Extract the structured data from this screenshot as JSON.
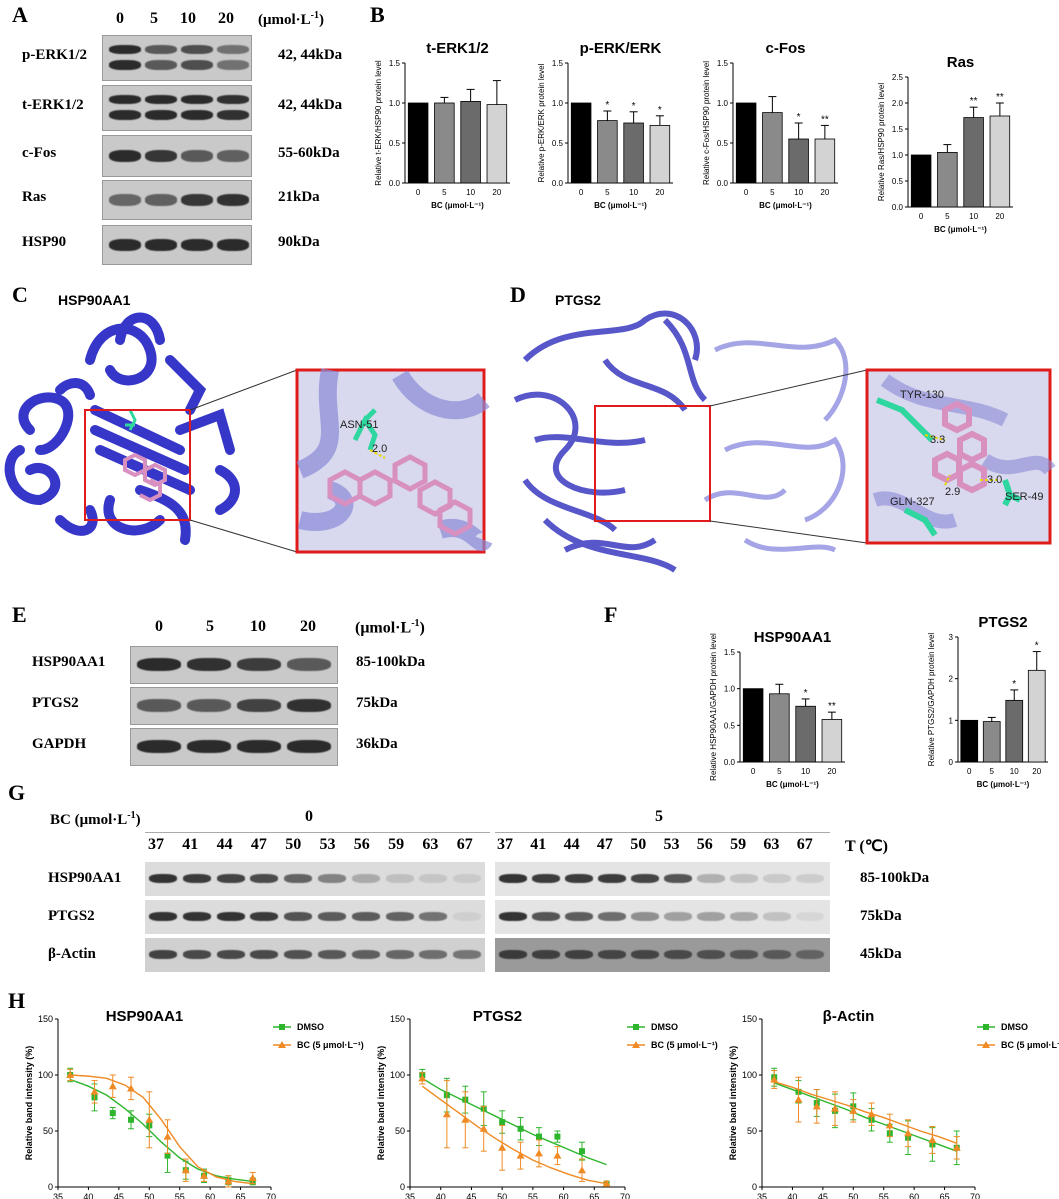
{
  "panels": {
    "A": "A",
    "B": "B",
    "C": "C",
    "D": "D",
    "E": "E",
    "F": "F",
    "G": "G",
    "H": "H"
  },
  "panelA": {
    "conc": [
      "0",
      "5",
      "10",
      "20"
    ],
    "unit_html": "(μmol·L",
    "unit_sup": "-1",
    "unit_close": ")",
    "rows": [
      {
        "label": "p-ERK1/2",
        "kda": "42, 44kDa",
        "intensity": [
          1,
          0.6,
          0.7,
          0.4
        ],
        "double": true
      },
      {
        "label": "t-ERK1/2",
        "kda": "42, 44kDa",
        "intensity": [
          1,
          1,
          1,
          0.95
        ],
        "double": true
      },
      {
        "label": "c-Fos",
        "kda": "55-60kDa",
        "intensity": [
          1,
          0.9,
          0.6,
          0.55
        ],
        "double": false
      },
      {
        "label": "Ras",
        "kda": "21kDa",
        "intensity": [
          0.5,
          0.55,
          0.9,
          0.95
        ],
        "double": false
      },
      {
        "label": "HSP90",
        "kda": "90kDa",
        "intensity": [
          1,
          1,
          1,
          1
        ],
        "double": false
      }
    ]
  },
  "chart_data": [
    {
      "type": "bar",
      "title": "t-ERK1/2",
      "ylabel": "Relative t-ERK/HSP90 protein level",
      "xlabel": "BC (μmol·L⁻¹)",
      "categories": [
        "0",
        "5",
        "10",
        "20"
      ],
      "values": [
        1.0,
        1.0,
        1.02,
        0.98
      ],
      "errors": [
        0,
        0.07,
        0.15,
        0.3
      ],
      "sig": [
        "",
        "",
        "",
        ""
      ],
      "ylim": [
        0,
        1.5
      ],
      "yticks": [
        "0.0",
        "0.5",
        "1.0",
        "1.5"
      ],
      "colors": [
        "#000000",
        "#8a8a8a",
        "#6b6b6b",
        "#d3d3d3"
      ]
    },
    {
      "type": "bar",
      "title": "p-ERK/ERK",
      "ylabel": "Relative p-ERK/ERK protein level",
      "xlabel": "BC (μmol·L⁻¹)",
      "categories": [
        "0",
        "5",
        "10",
        "20"
      ],
      "values": [
        1.0,
        0.78,
        0.75,
        0.72
      ],
      "errors": [
        0,
        0.12,
        0.14,
        0.12
      ],
      "sig": [
        "",
        "*",
        "*",
        "*"
      ],
      "ylim": [
        0,
        1.5
      ],
      "yticks": [
        "0.0",
        "0.5",
        "1.0",
        "1.5"
      ],
      "colors": [
        "#000000",
        "#8a8a8a",
        "#6b6b6b",
        "#d3d3d3"
      ]
    },
    {
      "type": "bar",
      "title": "c-Fos",
      "ylabel": "Relative c-Fos/HSP90 protein level",
      "xlabel": "BC (μmol·L⁻¹)",
      "categories": [
        "0",
        "5",
        "10",
        "20"
      ],
      "values": [
        1.0,
        0.88,
        0.55,
        0.55
      ],
      "errors": [
        0,
        0.2,
        0.2,
        0.17
      ],
      "sig": [
        "",
        "",
        "*",
        "**"
      ],
      "ylim": [
        0,
        1.5
      ],
      "yticks": [
        "0.0",
        "0.5",
        "1.0",
        "1.5"
      ],
      "colors": [
        "#000000",
        "#8a8a8a",
        "#6b6b6b",
        "#d3d3d3"
      ]
    },
    {
      "type": "bar",
      "title": "Ras",
      "ylabel": "Relative Ras/HSP90 protein level",
      "xlabel": "BC (μmol·L⁻¹)",
      "categories": [
        "0",
        "5",
        "10",
        "20"
      ],
      "values": [
        1.0,
        1.05,
        1.72,
        1.75
      ],
      "errors": [
        0,
        0.15,
        0.2,
        0.25
      ],
      "sig": [
        "",
        "",
        "**",
        "**"
      ],
      "ylim": [
        0,
        2.5
      ],
      "yticks": [
        "0.0",
        "0.5",
        "1.0",
        "1.5",
        "2.0",
        "2.5"
      ],
      "colors": [
        "#000000",
        "#8a8a8a",
        "#6b6b6b",
        "#d3d3d3"
      ]
    },
    {
      "type": "bar",
      "title": "HSP90AA1",
      "ylabel": "Relative HSP90AA1/GAPDH protein level",
      "xlabel": "BC (μmol·L⁻¹)",
      "categories": [
        "0",
        "5",
        "10",
        "20"
      ],
      "values": [
        1.0,
        0.93,
        0.76,
        0.58
      ],
      "errors": [
        0,
        0.13,
        0.1,
        0.1
      ],
      "sig": [
        "",
        "",
        "*",
        "**"
      ],
      "ylim": [
        0,
        1.5
      ],
      "yticks": [
        "0.0",
        "0.5",
        "1.0",
        "1.5"
      ],
      "colors": [
        "#000000",
        "#8a8a8a",
        "#6b6b6b",
        "#d3d3d3"
      ]
    },
    {
      "type": "bar",
      "title": "PTGS2",
      "ylabel": "Relative PTGS2/GAPDH protein level",
      "xlabel": "BC (μmol·L⁻¹)",
      "categories": [
        "0",
        "5",
        "10",
        "20"
      ],
      "values": [
        1.0,
        0.97,
        1.48,
        2.2
      ],
      "errors": [
        0,
        0.1,
        0.25,
        0.45
      ],
      "sig": [
        "",
        "",
        "*",
        "*"
      ],
      "ylim": [
        0,
        3
      ],
      "yticks": [
        "0",
        "1",
        "2",
        "3"
      ],
      "colors": [
        "#000000",
        "#8a8a8a",
        "#6b6b6b",
        "#d3d3d3"
      ]
    },
    {
      "type": "line",
      "title": "HSP90AA1",
      "ylabel": "Relative band intensity (%)",
      "xlabel": "T (℃)",
      "xlim": [
        35,
        70
      ],
      "ylim": [
        0,
        150
      ],
      "xticks": [
        "35",
        "40",
        "45",
        "50",
        "55",
        "60",
        "65",
        "70"
      ],
      "yticks": [
        "0",
        "50",
        "100",
        "150"
      ],
      "series": [
        {
          "name": "DMSO",
          "color": "#2db52d",
          "marker": "square",
          "x": [
            37,
            41,
            44,
            47,
            50,
            53,
            56,
            59,
            63,
            67
          ],
          "y": [
            100,
            80,
            66,
            60,
            55,
            28,
            15,
            10,
            6,
            5
          ],
          "err": [
            6,
            12,
            5,
            8,
            10,
            15,
            8,
            6,
            4,
            3
          ],
          "fit": [
            [
              37,
              96
            ],
            [
              40,
              90
            ],
            [
              43,
              82
            ],
            [
              46,
              70
            ],
            [
              49,
              56
            ],
            [
              52,
              40
            ],
            [
              55,
              26
            ],
            [
              58,
              16
            ],
            [
              61,
              10
            ],
            [
              64,
              7
            ],
            [
              67,
              5
            ]
          ]
        },
        {
          "name": "BC (5 μmol·L⁻¹)",
          "color": "#f08a24",
          "marker": "triangle",
          "x": [
            37,
            41,
            44,
            47,
            50,
            53,
            56,
            59,
            63,
            67
          ],
          "y": [
            100,
            85,
            90,
            88,
            60,
            45,
            15,
            10,
            5,
            8
          ],
          "err": [
            5,
            10,
            10,
            10,
            25,
            15,
            10,
            5,
            5,
            5
          ],
          "fit": [
            [
              37,
              100
            ],
            [
              40,
              99
            ],
            [
              43,
              97
            ],
            [
              46,
              91
            ],
            [
              49,
              80
            ],
            [
              52,
              60
            ],
            [
              55,
              36
            ],
            [
              58,
              18
            ],
            [
              61,
              9
            ],
            [
              64,
              5
            ],
            [
              67,
              3
            ]
          ]
        }
      ]
    },
    {
      "type": "line",
      "title": "PTGS2",
      "ylabel": "Relative band intensity (%)",
      "xlabel": "T (℃)",
      "xlim": [
        35,
        70
      ],
      "ylim": [
        0,
        150
      ],
      "xticks": [
        "35",
        "40",
        "45",
        "50",
        "55",
        "60",
        "65",
        "70"
      ],
      "yticks": [
        "0",
        "50",
        "100",
        "150"
      ],
      "series": [
        {
          "name": "DMSO",
          "color": "#2db52d",
          "marker": "square",
          "x": [
            37,
            41,
            44,
            47,
            50,
            53,
            56,
            59,
            63,
            67
          ],
          "y": [
            100,
            82,
            78,
            70,
            58,
            52,
            45,
            45,
            32,
            3
          ],
          "err": [
            5,
            15,
            12,
            15,
            10,
            10,
            8,
            5,
            8,
            2
          ],
          "fit": [
            [
              37,
              97
            ],
            [
              40,
              87
            ],
            [
              43,
              79
            ],
            [
              46,
              71
            ],
            [
              49,
              63
            ],
            [
              52,
              55
            ],
            [
              55,
              47
            ],
            [
              58,
              40
            ],
            [
              61,
              33
            ],
            [
              64,
              26
            ],
            [
              67,
              20
            ]
          ]
        },
        {
          "name": "BC (5 μmol·L⁻¹)",
          "color": "#f08a24",
          "marker": "triangle",
          "x": [
            37,
            41,
            44,
            47,
            50,
            53,
            56,
            59,
            63,
            67
          ],
          "y": [
            97,
            65,
            60,
            52,
            35,
            28,
            30,
            28,
            15,
            3
          ],
          "err": [
            5,
            30,
            25,
            20,
            20,
            12,
            12,
            8,
            10,
            2
          ],
          "fit": [
            [
              37,
              90
            ],
            [
              40,
              78
            ],
            [
              43,
              66
            ],
            [
              46,
              54
            ],
            [
              49,
              43
            ],
            [
              52,
              33
            ],
            [
              55,
              24
            ],
            [
              58,
              17
            ],
            [
              61,
              11
            ],
            [
              64,
              6
            ],
            [
              67,
              3
            ]
          ]
        }
      ]
    },
    {
      "type": "line",
      "title": "β-Actin",
      "ylabel": "Relative band intensity (%)",
      "xlabel": "T (℃)",
      "xlim": [
        35,
        70
      ],
      "ylim": [
        0,
        150
      ],
      "xticks": [
        "35",
        "40",
        "45",
        "50",
        "55",
        "60",
        "65",
        "70"
      ],
      "yticks": [
        "0",
        "50",
        "100",
        "150"
      ],
      "series": [
        {
          "name": "DMSO",
          "color": "#2db52d",
          "marker": "square",
          "x": [
            37,
            41,
            44,
            47,
            50,
            53,
            56,
            59,
            63,
            67
          ],
          "y": [
            98,
            85,
            75,
            68,
            72,
            60,
            48,
            44,
            38,
            35
          ],
          "err": [
            8,
            10,
            12,
            15,
            12,
            10,
            8,
            15,
            15,
            15
          ],
          "fit": [
            [
              37,
              93
            ],
            [
              40,
              87
            ],
            [
              43,
              81
            ],
            [
              46,
              75
            ],
            [
              49,
              69
            ],
            [
              52,
              62
            ],
            [
              55,
              56
            ],
            [
              58,
              50
            ],
            [
              61,
              44
            ],
            [
              64,
              38
            ],
            [
              67,
              32
            ]
          ]
        },
        {
          "name": "BC (5 μmol·L⁻¹)",
          "color": "#f08a24",
          "marker": "triangle",
          "x": [
            37,
            41,
            44,
            47,
            50,
            53,
            56,
            59,
            63,
            67
          ],
          "y": [
            96,
            78,
            72,
            70,
            68,
            65,
            55,
            48,
            42,
            35
          ],
          "err": [
            8,
            20,
            15,
            15,
            10,
            10,
            10,
            12,
            12,
            10
          ],
          "fit": [
            [
              37,
              94
            ],
            [
              40,
              89
            ],
            [
              43,
              83
            ],
            [
              46,
              78
            ],
            [
              49,
              73
            ],
            [
              52,
              67
            ],
            [
              55,
              62
            ],
            [
              58,
              56
            ],
            [
              61,
              50
            ],
            [
              64,
              45
            ],
            [
              67,
              39
            ]
          ]
        }
      ]
    }
  ],
  "panelC": {
    "title": "HSP90AA1",
    "residue": "ASN-51",
    "distance": "2.0"
  },
  "panelD": {
    "title": "PTGS2",
    "residues": [
      "TYR-130",
      "GLN-327",
      "SER-49"
    ],
    "distances": [
      "3.3",
      "2.9",
      "3.0"
    ]
  },
  "panelE": {
    "conc": [
      "0",
      "5",
      "10",
      "20"
    ],
    "unit_html": "(μmol·L",
    "unit_sup": "-1",
    "unit_close": ")",
    "rows": [
      {
        "label": "HSP90AA1",
        "kda": "85-100kDa",
        "intensity": [
          1,
          0.95,
          0.85,
          0.6
        ]
      },
      {
        "label": "PTGS2",
        "kda": "75kDa",
        "intensity": [
          0.6,
          0.6,
          0.8,
          0.95
        ]
      },
      {
        "label": "GAPDH",
        "kda": "36kDa",
        "intensity": [
          1,
          1,
          1,
          1
        ]
      }
    ]
  },
  "panelG": {
    "bc_label": "BC (μmol·L",
    "bc_sup": "-1",
    "bc_close": ")",
    "group0": "0",
    "group5": "5",
    "temps": [
      "37",
      "41",
      "44",
      "47",
      "50",
      "53",
      "56",
      "59",
      "63",
      "67"
    ],
    "t_label": "T (℃)",
    "rows": [
      {
        "label": "HSP90AA1",
        "kda": "85-100kDa",
        "left": [
          1,
          0.95,
          0.9,
          0.85,
          0.7,
          0.5,
          0.25,
          0.12,
          0.08,
          0.05
        ],
        "right": [
          1,
          0.95,
          0.95,
          0.95,
          0.9,
          0.8,
          0.25,
          0.15,
          0.1,
          0.08
        ]
      },
      {
        "label": "PTGS2",
        "kda": "75kDa",
        "left": [
          1,
          1,
          1,
          0.95,
          0.8,
          0.75,
          0.75,
          0.7,
          0.6,
          0.02
        ],
        "right": [
          1,
          0.8,
          0.75,
          0.65,
          0.45,
          0.35,
          0.35,
          0.3,
          0.15,
          0.02
        ]
      },
      {
        "label": "β-Actin",
        "kda": "45kDa",
        "left": [
          0.9,
          0.85,
          0.85,
          0.85,
          0.8,
          0.75,
          0.7,
          0.65,
          0.6,
          0.55
        ],
        "right": [
          0.9,
          0.85,
          0.85,
          0.8,
          0.8,
          0.75,
          0.7,
          0.65,
          0.6,
          0.5
        ]
      }
    ]
  },
  "legend": {
    "dmso": "DMSO",
    "bc": "BC (5 μmol·L⁻¹)"
  }
}
